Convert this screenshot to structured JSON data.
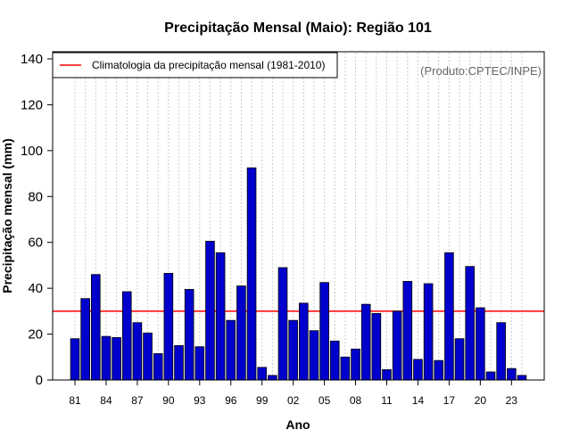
{
  "chart_data": {
    "type": "bar",
    "title": "Precipitação Mensal (Maio): Região 101",
    "xlabel": "Ano",
    "ylabel": "Precipitação mensal (mm)",
    "ylim": [
      0,
      140
    ],
    "yticks": [
      0,
      20,
      40,
      60,
      80,
      100,
      120,
      140
    ],
    "categories": [
      "81",
      "82",
      "83",
      "84",
      "85",
      "86",
      "87",
      "88",
      "89",
      "90",
      "91",
      "92",
      "93",
      "94",
      "95",
      "96",
      "97",
      "98",
      "99",
      "00",
      "01",
      "02",
      "03",
      "04",
      "05",
      "06",
      "07",
      "08",
      "09",
      "10",
      "11",
      "12",
      "13",
      "14",
      "15",
      "16",
      "17",
      "18",
      "19",
      "20",
      "21",
      "22",
      "23",
      "24"
    ],
    "xtick_labels": [
      "81",
      "84",
      "87",
      "90",
      "93",
      "96",
      "99",
      "02",
      "05",
      "08",
      "11",
      "14",
      "17",
      "20",
      "23"
    ],
    "values": [
      18,
      35.5,
      46,
      19,
      18.5,
      38.5,
      25,
      20.5,
      11.5,
      46.5,
      15,
      39.5,
      14.5,
      60.5,
      55.5,
      26,
      41,
      92.5,
      5.5,
      2,
      49,
      26,
      33.5,
      21.5,
      42.5,
      17,
      10,
      13.5,
      33,
      29,
      4.5,
      30,
      43,
      9,
      42,
      8.5,
      55.5,
      18,
      49.5,
      31.5,
      3.5,
      25,
      5,
      2
    ],
    "bar_color": "#0000CD",
    "reference_line": {
      "value": 30,
      "label": "Climatologia da precipitação mensal (1981-2010)",
      "color": "#FF0000"
    },
    "legend": {
      "position": "top-left",
      "entries": [
        "Climatologia da precipitação mensal (1981-2010)"
      ]
    },
    "annotation": "(Produto:CPTEC/INPE)",
    "grid": "vertical-dotted"
  }
}
